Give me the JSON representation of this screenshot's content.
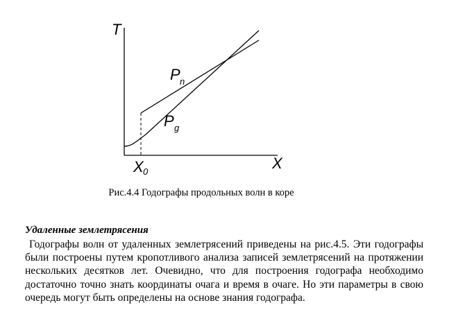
{
  "figure": {
    "axis_y_label": "T",
    "axis_x_label": "X",
    "x0_label": "X",
    "x0_sub": "0",
    "pn_label": "P",
    "pn_sub": "n",
    "pg_label": "P",
    "pg_sub": "g",
    "caption": "Рис.4.4 Годографы продольных волн в коре"
  },
  "section": {
    "heading": "Удаленные землетрясения",
    "paragraph": "Годографы волн от удаленных землетрясений приведены на рис.4.5. Эти годографы были построены путем кропотливого анализа записей землетрясений на протяжении нескольких десятков лет. Очевидно, что для построения  годографа необходимо достаточно точно знать координаты очага и время в очаге. Но эти параметры в свою очередь могут быть определены на основе знания годографа."
  }
}
